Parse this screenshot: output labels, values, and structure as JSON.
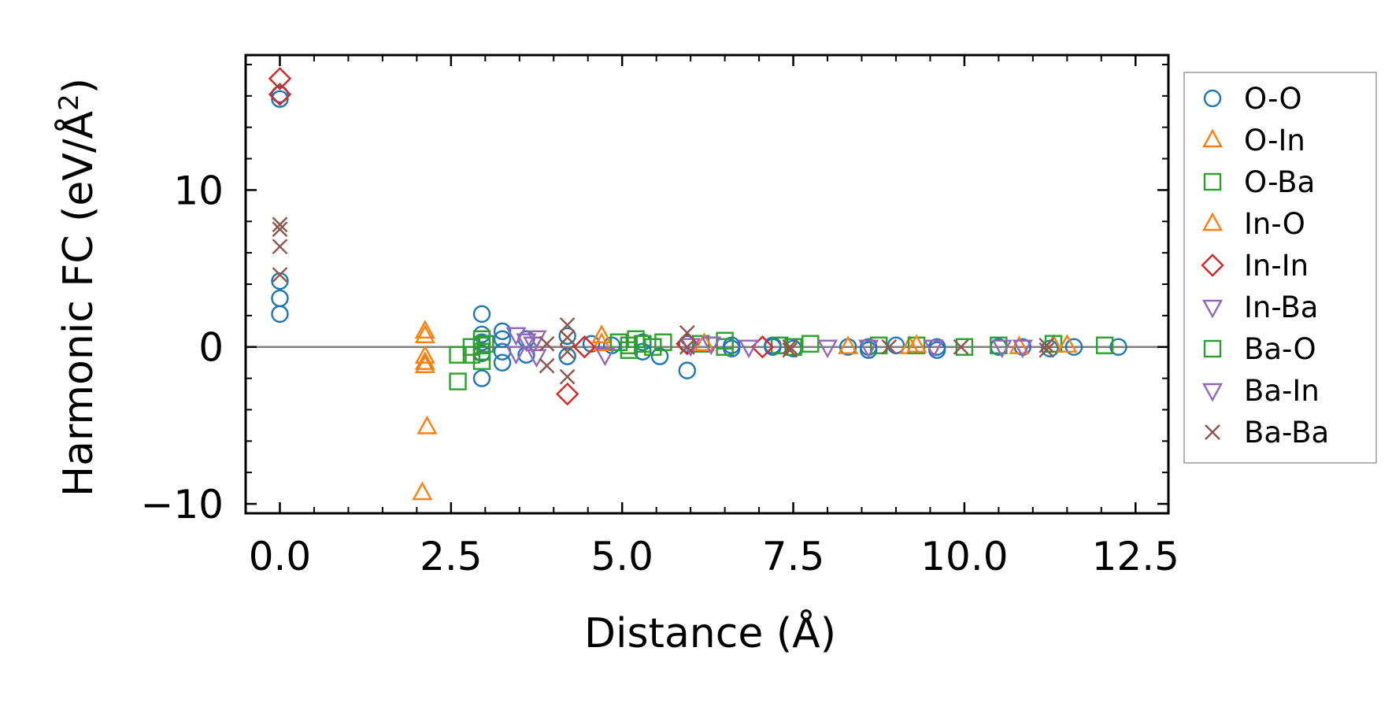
{
  "chart_data": {
    "type": "scatter",
    "title": "",
    "xlabel": "Distance (Å)",
    "ylabel_main": "Harmonic FC (eV/Å",
    "ylabel_sup": "2",
    "ylabel_close": ")",
    "xlim": [
      -0.5,
      12.98
    ],
    "ylim": [
      -10.6,
      18.6
    ],
    "xticks": [
      0,
      2.5,
      5,
      7.5,
      10,
      12.5
    ],
    "xtick_labels": [
      "0.0",
      "2.5",
      "5.0",
      "7.5",
      "10.0",
      "12.5"
    ],
    "yticks": [
      -10,
      0,
      10
    ],
    "ytick_labels": [
      "−10",
      "0",
      "10"
    ],
    "zero_line": true,
    "legend_position": "right",
    "series": [
      {
        "name": "O-O",
        "marker": "circle",
        "color": "#1f77b4",
        "points": [
          [
            0,
            15.8
          ],
          [
            0,
            16.1
          ],
          [
            0,
            4.2
          ],
          [
            0,
            3.1
          ],
          [
            0,
            2.1
          ],
          [
            2.95,
            2.1
          ],
          [
            2.95,
            0.8
          ],
          [
            2.95,
            0.3
          ],
          [
            2.95,
            -0.4
          ],
          [
            2.95,
            -2.0
          ],
          [
            3.25,
            1.0
          ],
          [
            3.25,
            0.5
          ],
          [
            3.25,
            -0.3
          ],
          [
            3.25,
            -1.0
          ],
          [
            3.6,
            0.5
          ],
          [
            3.6,
            -0.5
          ],
          [
            4.2,
            0.7
          ],
          [
            4.2,
            -0.6
          ],
          [
            4.55,
            0.2
          ],
          [
            4.85,
            0.1
          ],
          [
            5.3,
            0.3
          ],
          [
            5.3,
            -0.3
          ],
          [
            5.55,
            -0.6
          ],
          [
            5.95,
            0.2
          ],
          [
            5.95,
            -1.5
          ],
          [
            6.6,
            0.1
          ],
          [
            6.6,
            -0.1
          ],
          [
            7.2,
            0.0
          ],
          [
            7.2,
            0.1
          ],
          [
            7.5,
            -0.1
          ],
          [
            8.3,
            0.0
          ],
          [
            8.6,
            0.0
          ],
          [
            8.6,
            -0.2
          ],
          [
            9.0,
            0.1
          ],
          [
            9.6,
            0.0
          ],
          [
            9.6,
            -0.2
          ],
          [
            10.5,
            0.0
          ],
          [
            10.85,
            0.0
          ],
          [
            11.25,
            -0.1
          ],
          [
            11.6,
            0.0
          ],
          [
            12.25,
            0.0
          ]
        ]
      },
      {
        "name": "O-In",
        "marker": "triangle-up",
        "color": "#ff7f0e",
        "points": [
          [
            2.12,
            1.0
          ],
          [
            2.12,
            0.7
          ],
          [
            2.12,
            -0.6
          ],
          [
            2.12,
            -1.0
          ],
          [
            2.12,
            -1.2
          ],
          [
            2.15,
            -5.1
          ],
          [
            2.08,
            -9.3
          ],
          [
            4.7,
            0.7
          ],
          [
            4.7,
            0.2
          ],
          [
            8.3,
            0.0
          ],
          [
            9.2,
            0.0
          ],
          [
            10.8,
            0.0
          ],
          [
            11.3,
            0.1
          ]
        ]
      },
      {
        "name": "O-Ba",
        "marker": "square",
        "color": "#2ca02c",
        "points": [
          [
            2.6,
            -0.5
          ],
          [
            2.6,
            -2.2
          ],
          [
            2.8,
            0.0
          ],
          [
            2.8,
            -0.5
          ],
          [
            2.95,
            0.5
          ],
          [
            2.95,
            0.1
          ],
          [
            2.95,
            -0.3
          ],
          [
            2.95,
            -0.9
          ],
          [
            4.95,
            0.3
          ],
          [
            5.1,
            0.1
          ],
          [
            5.1,
            -0.2
          ],
          [
            5.2,
            0.5
          ],
          [
            5.3,
            0.2
          ],
          [
            5.45,
            0.0
          ],
          [
            6.15,
            0.2
          ],
          [
            6.5,
            0.4
          ],
          [
            6.5,
            0.0
          ],
          [
            7.3,
            0.1
          ],
          [
            7.75,
            0.2
          ],
          [
            8.75,
            0.1
          ],
          [
            9.3,
            0.1
          ],
          [
            10.0,
            0.0
          ],
          [
            10.5,
            0.1
          ],
          [
            11.3,
            0.2
          ],
          [
            12.05,
            0.1
          ]
        ]
      },
      {
        "name": "In-O",
        "marker": "triangle-up",
        "color": "#ff7f0e",
        "points": [
          [
            6.2,
            0.2
          ],
          [
            9.3,
            0.1
          ],
          [
            11.5,
            0.1
          ]
        ]
      },
      {
        "name": "In-In",
        "marker": "diamond",
        "color": "#d62728",
        "points": [
          [
            0,
            17.1
          ],
          [
            0,
            16.1
          ],
          [
            4.2,
            -3.0
          ],
          [
            4.45,
            0.0
          ],
          [
            5.95,
            0.2
          ],
          [
            7.05,
            0.0
          ]
        ]
      },
      {
        "name": "In-Ba",
        "marker": "triangle-down",
        "color": "#9467bd",
        "points": [
          [
            3.45,
            0.8
          ],
          [
            3.45,
            -0.4
          ],
          [
            3.6,
            0.4
          ],
          [
            3.75,
            0.6
          ],
          [
            3.75,
            -0.6
          ],
          [
            4.75,
            -0.5
          ],
          [
            6.3,
            0.2
          ],
          [
            6.85,
            0.0
          ],
          [
            8.0,
            0.0
          ],
          [
            9.55,
            0.0
          ]
        ]
      },
      {
        "name": "Ba-O",
        "marker": "square",
        "color": "#2ca02c",
        "points": [
          [
            3.0,
            0.2
          ],
          [
            5.6,
            0.3
          ],
          [
            7.5,
            0.0
          ]
        ]
      },
      {
        "name": "Ba-In",
        "marker": "triangle-down",
        "color": "#9467bd",
        "points": [
          [
            3.7,
            0.2
          ],
          [
            6.0,
            0.1
          ],
          [
            8.6,
            0.0
          ],
          [
            10.55,
            0.0
          ],
          [
            10.85,
            0.0
          ]
        ]
      },
      {
        "name": "Ba-Ba",
        "marker": "cross",
        "color": "#8c564b",
        "points": [
          [
            0,
            7.8
          ],
          [
            0,
            7.5
          ],
          [
            0,
            6.4
          ],
          [
            0,
            4.6
          ],
          [
            3.9,
            0.2
          ],
          [
            3.9,
            -1.2
          ],
          [
            4.2,
            1.4
          ],
          [
            4.2,
            0.6
          ],
          [
            4.2,
            -0.3
          ],
          [
            4.2,
            -1.9
          ],
          [
            5.95,
            0.9
          ],
          [
            5.95,
            0.0
          ],
          [
            7.45,
            0.0
          ],
          [
            7.45,
            -0.2
          ],
          [
            8.9,
            0.0
          ],
          [
            9.95,
            0.0
          ],
          [
            11.2,
            -0.2
          ],
          [
            11.2,
            0.1
          ]
        ]
      }
    ]
  }
}
